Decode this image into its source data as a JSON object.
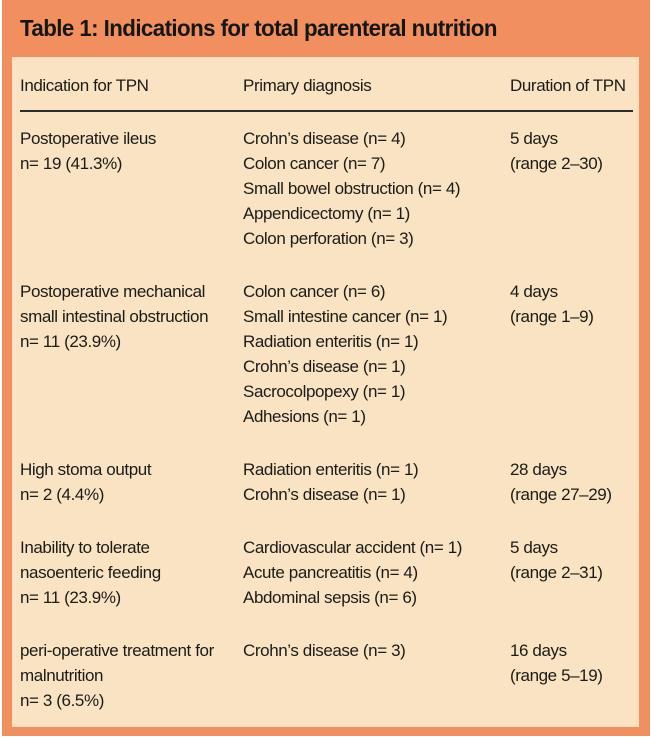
{
  "title": "Table 1: Indications for total parenteral nutrition",
  "colors": {
    "frame_orange": "#F18F5F",
    "panel_cream": "#FAE3C2",
    "text": "#1b1b18",
    "divider": "#2b2b27"
  },
  "table": {
    "columns": [
      "Indication for TPN",
      "Primary diagnosis",
      "Duration of TPN"
    ],
    "rows": [
      {
        "indication": [
          "Postoperative ileus",
          "n= 19 (41.3%)"
        ],
        "diagnoses": [
          "Crohn’s disease (n= 4)",
          "Colon cancer (n= 7)",
          "Small bowel obstruction (n= 4)",
          "Appendicectomy (n= 1)",
          "Colon perforation (n= 3)"
        ],
        "duration": [
          "5 days",
          "(range 2–30)"
        ]
      },
      {
        "indication": [
          "Postoperative mechanical",
          "small intestinal obstruction",
          "n= 11 (23.9%)"
        ],
        "diagnoses": [
          "Colon cancer (n= 6)",
          "Small intestine cancer (n= 1)",
          "Radiation enteritis (n= 1)",
          "Crohn’s disease (n= 1)",
          "Sacrocolpopexy (n= 1)",
          "Adhesions (n= 1)"
        ],
        "duration": [
          "4 days",
          "(range 1–9)"
        ]
      },
      {
        "indication": [
          "High stoma output",
          "n= 2 (4.4%)"
        ],
        "diagnoses": [
          "Radiation enteritis (n= 1)",
          "Crohn’s disease (n= 1)"
        ],
        "duration": [
          "28 days",
          "(range 27–29)"
        ]
      },
      {
        "indication": [
          "Inability to tolerate",
          "nasoenteric feeding",
          "n= 11 (23.9%)"
        ],
        "diagnoses": [
          "Cardiovascular accident (n= 1)",
          "Acute pancreatitis (n= 4)",
          "Abdominal sepsis (n= 6)"
        ],
        "duration": [
          "5 days",
          "(range 2–31)"
        ]
      },
      {
        "indication": [
          "peri-operative treatment for",
          "malnutrition",
          "n= 3 (6.5%)"
        ],
        "diagnoses": [
          "Crohn’s disease (n= 3)"
        ],
        "duration": [
          "16 days",
          "(range 5–19)"
        ]
      }
    ]
  }
}
